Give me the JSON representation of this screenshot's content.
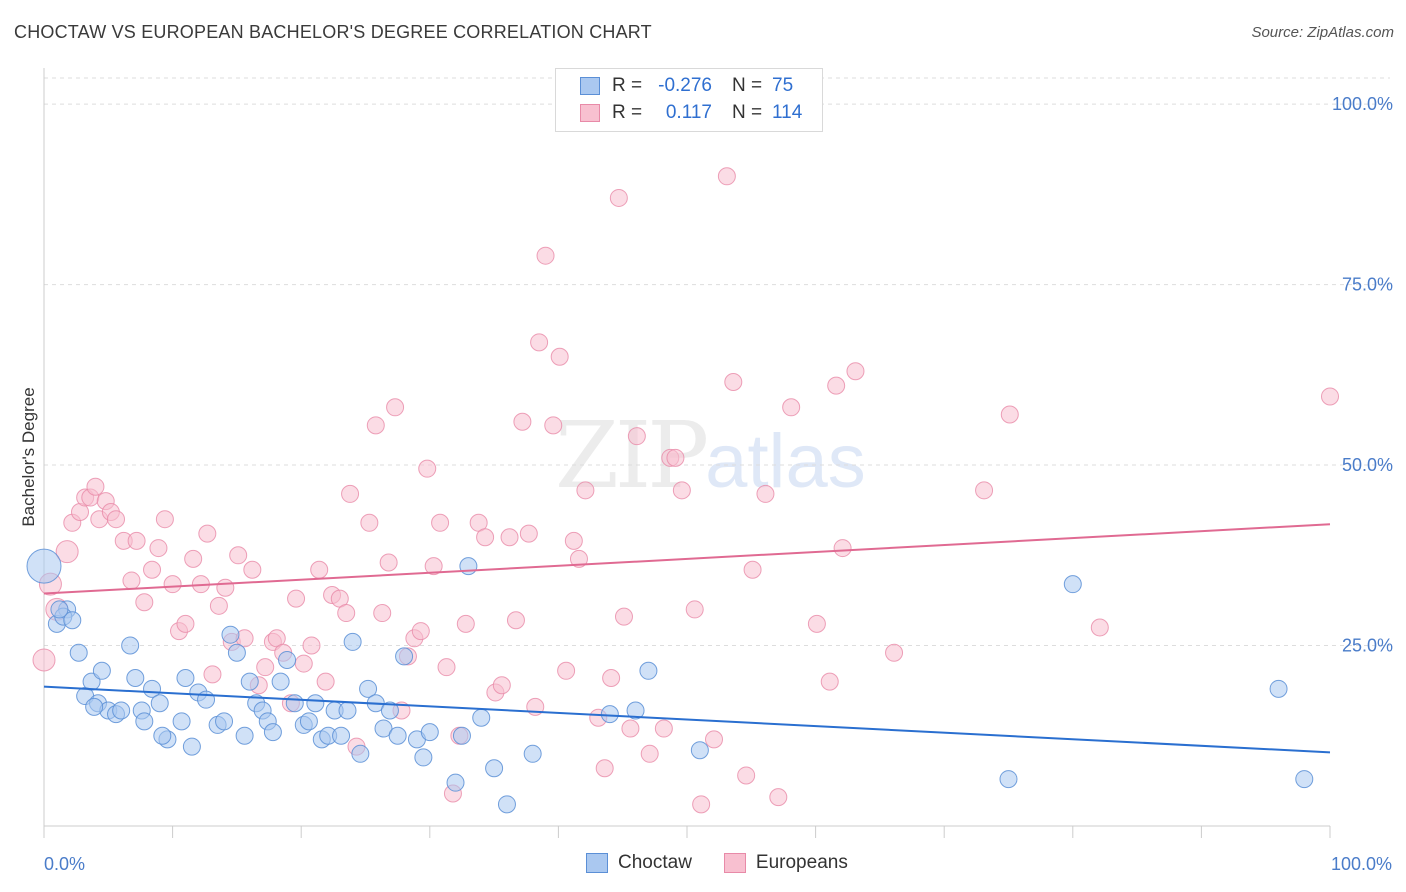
{
  "title": "CHOCTAW VS EUROPEAN BACHELOR'S DEGREE CORRELATION CHART",
  "source": "Source: ZipAtlas.com",
  "watermark": {
    "zip": "ZIP",
    "atlas": "atlas"
  },
  "legend_top": {
    "rows": [
      {
        "r_label": "R =",
        "r_value": "-0.276",
        "n_label": "N =",
        "n_value": "75"
      },
      {
        "r_label": "R =",
        "r_value": "0.117",
        "n_label": "N =",
        "n_value": "114"
      }
    ]
  },
  "legend_bottom": {
    "items": [
      "Choctaw",
      "Europeans"
    ]
  },
  "colors": {
    "choctaw_fill": "#aac8f0",
    "choctaw_stroke": "#5b8fd6",
    "choctaw_line": "#2a6fd0",
    "europeans_fill": "#f8c0d0",
    "europeans_stroke": "#e88aa8",
    "europeans_line": "#e06a92",
    "tick_text": "#4a7cc9",
    "grid": "#dddddd"
  },
  "chart_data": {
    "type": "scatter",
    "title": "CHOCTAW VS EUROPEAN BACHELOR'S DEGREE CORRELATION CHART",
    "xlabel": "",
    "ylabel": "Bachelor's Degree",
    "xlim": [
      0,
      100
    ],
    "ylim": [
      0,
      105
    ],
    "x_tick_labels": [
      "0.0%",
      "100.0%"
    ],
    "y_ticks": [
      25,
      50,
      75,
      100
    ],
    "y_tick_labels": [
      "25.0%",
      "50.0%",
      "75.0%",
      "100.0%"
    ],
    "grid": true,
    "legend_position": "top-center",
    "series": [
      {
        "name": "Choctaw",
        "r": -0.276,
        "n": 75,
        "trend": {
          "x": [
            0,
            100
          ],
          "y": [
            19.3,
            10.2
          ]
        },
        "points": [
          [
            0,
            36
          ],
          [
            1,
            28
          ],
          [
            1.8,
            30
          ],
          [
            1.5,
            29
          ],
          [
            2.2,
            28.5
          ],
          [
            2.7,
            24
          ],
          [
            3.2,
            18
          ],
          [
            3.7,
            20
          ],
          [
            4.2,
            17
          ],
          [
            4.5,
            21.5
          ],
          [
            5,
            16
          ],
          [
            5.6,
            15.5
          ],
          [
            6.7,
            25
          ],
          [
            7.1,
            20.5
          ],
          [
            7.6,
            16
          ],
          [
            7.8,
            14.5
          ],
          [
            8.4,
            19
          ],
          [
            9,
            17
          ],
          [
            9.6,
            12
          ],
          [
            10.7,
            14.5
          ],
          [
            11,
            20.5
          ],
          [
            11.5,
            11
          ],
          [
            12,
            18.5
          ],
          [
            12.6,
            17.5
          ],
          [
            13.5,
            14
          ],
          [
            14,
            14.5
          ],
          [
            14.5,
            26.5
          ],
          [
            15,
            24
          ],
          [
            15.6,
            12.5
          ],
          [
            16,
            20
          ],
          [
            16.5,
            17
          ],
          [
            17,
            16
          ],
          [
            17.4,
            14.5
          ],
          [
            17.8,
            13
          ],
          [
            18.4,
            20
          ],
          [
            18.9,
            23
          ],
          [
            19.5,
            17
          ],
          [
            20.2,
            14
          ],
          [
            20.6,
            14.5
          ],
          [
            21.1,
            17
          ],
          [
            21.6,
            12
          ],
          [
            22.1,
            12.5
          ],
          [
            22.6,
            16
          ],
          [
            23.1,
            12.5
          ],
          [
            23.6,
            16
          ],
          [
            24,
            25.5
          ],
          [
            24.6,
            10
          ],
          [
            25.2,
            19
          ],
          [
            25.8,
            17
          ],
          [
            26.4,
            13.5
          ],
          [
            26.9,
            16
          ],
          [
            27.5,
            12.5
          ],
          [
            28,
            23.5
          ],
          [
            29,
            12
          ],
          [
            29.5,
            9.5
          ],
          [
            30,
            13
          ],
          [
            32,
            6
          ],
          [
            32.5,
            12.5
          ],
          [
            33,
            36
          ],
          [
            34,
            15
          ],
          [
            35,
            8
          ],
          [
            36,
            3
          ],
          [
            38,
            10
          ],
          [
            44,
            15.5
          ],
          [
            46,
            16
          ],
          [
            47,
            21.5
          ],
          [
            51,
            10.5
          ],
          [
            75,
            6.5
          ],
          [
            80,
            33.5
          ],
          [
            96,
            19
          ],
          [
            98,
            6.5
          ],
          [
            1.2,
            30
          ],
          [
            3.9,
            16.5
          ],
          [
            6,
            16
          ],
          [
            9.2,
            12.5
          ]
        ]
      },
      {
        "name": "Europeans",
        "r": 0.117,
        "n": 114,
        "trend": {
          "x": [
            0,
            100
          ],
          "y": [
            32.2,
            41.8
          ]
        },
        "points": [
          [
            0,
            23
          ],
          [
            0.5,
            33.5
          ],
          [
            1,
            30
          ],
          [
            1.8,
            38
          ],
          [
            2.2,
            42
          ],
          [
            2.8,
            43.5
          ],
          [
            3.2,
            45.5
          ],
          [
            3.6,
            45.5
          ],
          [
            4,
            47
          ],
          [
            4.3,
            42.5
          ],
          [
            4.8,
            45
          ],
          [
            5.2,
            43.5
          ],
          [
            5.6,
            42.5
          ],
          [
            6.2,
            39.5
          ],
          [
            6.8,
            34
          ],
          [
            7.2,
            39.5
          ],
          [
            7.8,
            31
          ],
          [
            8.4,
            35.5
          ],
          [
            8.9,
            38.5
          ],
          [
            9.4,
            42.5
          ],
          [
            10,
            33.5
          ],
          [
            10.5,
            27
          ],
          [
            11,
            28
          ],
          [
            11.6,
            37
          ],
          [
            12.2,
            33.5
          ],
          [
            12.7,
            40.5
          ],
          [
            13.1,
            21
          ],
          [
            13.6,
            30.5
          ],
          [
            14.1,
            33
          ],
          [
            14.6,
            25.5
          ],
          [
            15.1,
            37.5
          ],
          [
            15.6,
            26
          ],
          [
            16.2,
            35.5
          ],
          [
            16.7,
            19.5
          ],
          [
            17.2,
            22
          ],
          [
            17.8,
            25.5
          ],
          [
            18.1,
            26
          ],
          [
            18.6,
            24
          ],
          [
            19.2,
            17
          ],
          [
            19.6,
            31.5
          ],
          [
            20.2,
            22.5
          ],
          [
            20.8,
            25
          ],
          [
            21.4,
            35.5
          ],
          [
            21.9,
            20
          ],
          [
            22.4,
            32
          ],
          [
            23,
            31.5
          ],
          [
            23.5,
            29.5
          ],
          [
            23.8,
            46
          ],
          [
            24.3,
            11
          ],
          [
            25.3,
            42
          ],
          [
            25.8,
            55.5
          ],
          [
            26.3,
            29.5
          ],
          [
            26.8,
            36.5
          ],
          [
            27.3,
            58
          ],
          [
            27.8,
            16
          ],
          [
            28.3,
            23.5
          ],
          [
            28.8,
            26
          ],
          [
            29.3,
            27
          ],
          [
            29.8,
            49.5
          ],
          [
            30.3,
            36
          ],
          [
            30.8,
            42
          ],
          [
            31.3,
            22
          ],
          [
            31.8,
            4.5
          ],
          [
            32.3,
            12.5
          ],
          [
            32.8,
            28
          ],
          [
            33.8,
            42
          ],
          [
            34.3,
            40
          ],
          [
            35.1,
            18.5
          ],
          [
            35.6,
            19.5
          ],
          [
            36.2,
            40
          ],
          [
            36.7,
            28.5
          ],
          [
            37.2,
            56
          ],
          [
            37.7,
            40.5
          ],
          [
            38.2,
            16.5
          ],
          [
            38.5,
            67
          ],
          [
            39,
            79
          ],
          [
            39.6,
            55.5
          ],
          [
            40.1,
            65
          ],
          [
            40.6,
            21.5
          ],
          [
            41.2,
            39.5
          ],
          [
            41.6,
            37
          ],
          [
            42.1,
            46.5
          ],
          [
            43.1,
            15
          ],
          [
            43.6,
            8
          ],
          [
            44.1,
            20.5
          ],
          [
            44.7,
            87
          ],
          [
            45.1,
            29
          ],
          [
            45.6,
            13.5
          ],
          [
            46.1,
            54
          ],
          [
            47.1,
            10
          ],
          [
            48.2,
            13.5
          ],
          [
            48.7,
            51
          ],
          [
            49.1,
            51
          ],
          [
            49.6,
            46.5
          ],
          [
            50.6,
            30
          ],
          [
            51.1,
            3
          ],
          [
            52.1,
            12
          ],
          [
            53.1,
            90
          ],
          [
            53.6,
            61.5
          ],
          [
            54.6,
            7
          ],
          [
            55.1,
            35.5
          ],
          [
            56.1,
            46
          ],
          [
            57.1,
            4
          ],
          [
            58.1,
            58
          ],
          [
            60.1,
            28
          ],
          [
            61.1,
            20
          ],
          [
            61.6,
            61
          ],
          [
            62.1,
            38.5
          ],
          [
            63.1,
            63
          ],
          [
            66.1,
            24
          ],
          [
            73.1,
            46.5
          ],
          [
            75.1,
            57
          ],
          [
            82.1,
            27.5
          ],
          [
            100,
            59.5
          ]
        ]
      }
    ]
  }
}
